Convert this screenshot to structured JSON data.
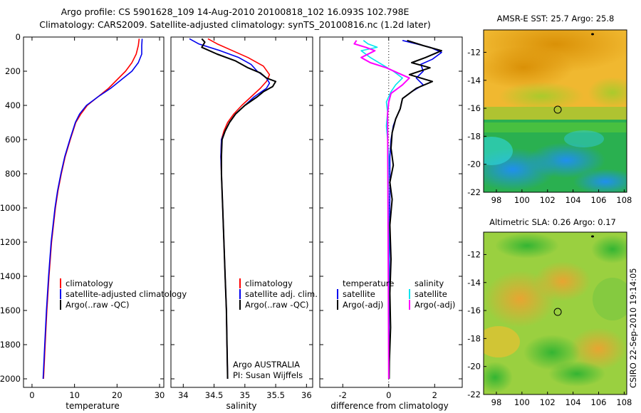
{
  "header": {
    "line1": "Argo profile: CS 5901628_109 14-Aug-2010 20100818_102 16.093S 102.798E",
    "line2": "Climatology: CARS2009. Satellite-adjusted climatology: synTS_20100816.nc (1.2d later)"
  },
  "side_stamp": "CSIRO 22-Sep-2010 19:14:05",
  "colors": {
    "climatology": "#ff0000",
    "satellite": "#0000ee",
    "argo": "#000000",
    "salinity_satellite": "#00e5ee",
    "salinity_argo": "#ff00ff"
  },
  "chart_data": [
    {
      "type": "line",
      "panel": "temperature",
      "xlabel": "temperature",
      "ylabel": "",
      "xlim": [
        -2,
        31
      ],
      "ylim": [
        2050,
        0
      ],
      "xticks": [
        0,
        10,
        20,
        30
      ],
      "yticks": [
        0,
        200,
        400,
        600,
        800,
        1000,
        1200,
        1400,
        1600,
        1800,
        2000
      ],
      "legend": [
        "climatology",
        "satellite-adjusted climatology",
        "Argo(..raw -QC)"
      ],
      "legend_position": "bottom-right",
      "series": [
        {
          "name": "climatology",
          "color": "#ff0000",
          "points": [
            [
              25.2,
              10
            ],
            [
              25.0,
              50
            ],
            [
              24.5,
              100
            ],
            [
              23.5,
              150
            ],
            [
              22.0,
              200
            ],
            [
              20.0,
              250
            ],
            [
              18.0,
              300
            ],
            [
              15.5,
              350
            ],
            [
              13.0,
              400
            ],
            [
              11.5,
              450
            ],
            [
              10.3,
              500
            ],
            [
              9.0,
              600
            ],
            [
              7.8,
              700
            ],
            [
              6.9,
              800
            ],
            [
              6.1,
              900
            ],
            [
              5.5,
              1000
            ],
            [
              4.6,
              1200
            ],
            [
              4.0,
              1400
            ],
            [
              3.5,
              1600
            ],
            [
              3.1,
              1800
            ],
            [
              2.8,
              1950
            ],
            [
              2.7,
              2000
            ]
          ]
        },
        {
          "name": "satellite-adjusted climatology",
          "color": "#0000ee",
          "points": [
            [
              25.9,
              10
            ],
            [
              25.8,
              50
            ],
            [
              25.8,
              100
            ],
            [
              25.0,
              150
            ],
            [
              23.5,
              200
            ],
            [
              21.0,
              250
            ],
            [
              18.5,
              300
            ],
            [
              15.5,
              350
            ],
            [
              12.8,
              400
            ],
            [
              11.2,
              450
            ],
            [
              10.2,
              500
            ],
            [
              8.9,
              600
            ],
            [
              7.7,
              700
            ],
            [
              6.8,
              800
            ],
            [
              6.0,
              900
            ],
            [
              5.4,
              1000
            ],
            [
              4.5,
              1200
            ],
            [
              3.9,
              1400
            ],
            [
              3.4,
              1600
            ],
            [
              3.0,
              1800
            ],
            [
              2.7,
              1950
            ],
            [
              2.6,
              2000
            ]
          ]
        },
        {
          "name": "Argo(..raw -QC)",
          "color": "#000000",
          "points": []
        }
      ]
    },
    {
      "type": "line",
      "panel": "salinity",
      "xlabel": "salinity",
      "ylabel": "",
      "xlim": [
        33.8,
        36.1
      ],
      "ylim": [
        2050,
        0
      ],
      "xticks": [
        34,
        34.5,
        35,
        35.5,
        36
      ],
      "yticks": [
        0,
        200,
        400,
        600,
        800,
        1000,
        1200,
        1400,
        1600,
        1800,
        2000
      ],
      "legend": [
        "climatology",
        "satellite adj. clim.",
        "Argo(..raw -QC)"
      ],
      "legend_position": "bottom-right",
      "annotation": [
        "Argo AUSTRALIA",
        "PI: Susan Wijffels"
      ],
      "series": [
        {
          "name": "climatology",
          "color": "#ff0000",
          "points": [
            [
              34.4,
              10
            ],
            [
              34.55,
              40
            ],
            [
              34.8,
              80
            ],
            [
              35.05,
              120
            ],
            [
              35.3,
              170
            ],
            [
              35.4,
              220
            ],
            [
              35.35,
              260
            ],
            [
              35.25,
              300
            ],
            [
              35.1,
              350
            ],
            [
              34.95,
              400
            ],
            [
              34.82,
              450
            ],
            [
              34.72,
              500
            ],
            [
              34.66,
              550
            ],
            [
              34.62,
              600
            ],
            [
              34.61,
              700
            ],
            [
              34.62,
              800
            ],
            [
              34.64,
              1000
            ],
            [
              34.66,
              1200
            ],
            [
              34.68,
              1400
            ],
            [
              34.7,
              1600
            ],
            [
              34.71,
              1800
            ],
            [
              34.72,
              2000
            ]
          ]
        },
        {
          "name": "satellite adj. clim.",
          "color": "#0000ee",
          "points": [
            [
              34.1,
              10
            ],
            [
              34.25,
              40
            ],
            [
              34.6,
              80
            ],
            [
              34.9,
              120
            ],
            [
              35.1,
              160
            ],
            [
              35.2,
              200
            ],
            [
              35.35,
              240
            ],
            [
              35.4,
              270
            ],
            [
              35.35,
              300
            ],
            [
              35.15,
              350
            ],
            [
              35.0,
              400
            ],
            [
              34.85,
              450
            ],
            [
              34.75,
              500
            ],
            [
              34.68,
              550
            ],
            [
              34.62,
              600
            ],
            [
              34.61,
              700
            ],
            [
              34.62,
              800
            ],
            [
              34.64,
              1000
            ],
            [
              34.66,
              1200
            ],
            [
              34.68,
              1400
            ],
            [
              34.7,
              1600
            ],
            [
              34.71,
              1800
            ],
            [
              34.72,
              2000
            ]
          ]
        },
        {
          "name": "Argo(..raw -QC)",
          "color": "#000000",
          "points": [
            [
              34.3,
              10
            ],
            [
              34.35,
              30
            ],
            [
              34.3,
              60
            ],
            [
              34.55,
              100
            ],
            [
              34.85,
              140
            ],
            [
              35.05,
              180
            ],
            [
              35.25,
              210
            ],
            [
              35.35,
              240
            ],
            [
              35.5,
              260
            ],
            [
              35.45,
              290
            ],
            [
              35.3,
              320
            ],
            [
              35.2,
              350
            ],
            [
              35.0,
              400
            ],
            [
              34.85,
              450
            ],
            [
              34.75,
              500
            ],
            [
              34.68,
              550
            ],
            [
              34.63,
              600
            ],
            [
              34.62,
              700
            ],
            [
              34.62,
              800
            ],
            [
              34.64,
              1000
            ],
            [
              34.66,
              1200
            ],
            [
              34.68,
              1400
            ],
            [
              34.7,
              1600
            ],
            [
              34.71,
              1800
            ],
            [
              34.72,
              2000
            ]
          ]
        }
      ]
    },
    {
      "type": "line",
      "panel": "difference",
      "xlabel": "difference from climatology",
      "ylabel": "",
      "xlim": [
        -3,
        3.2
      ],
      "ylim": [
        2050,
        0
      ],
      "xticks": [
        -2,
        0,
        2
      ],
      "yticks": [
        0,
        200,
        400,
        600,
        800,
        1000,
        1200,
        1400,
        1600,
        1800,
        2000
      ],
      "legend_groups": [
        {
          "title": "temperature",
          "items": [
            "satellite",
            "Argo(-adj)"
          ]
        },
        {
          "title": "salinity",
          "items": [
            "satellite",
            "Argo(-adj)"
          ]
        }
      ],
      "legend_position": "bottom",
      "series": [
        {
          "name": "satellite",
          "group": "temperature",
          "color": "#0000ee",
          "points": [
            [
              0.6,
              20
            ],
            [
              1.2,
              40
            ],
            [
              1.8,
              60
            ],
            [
              2.3,
              90
            ],
            [
              1.9,
              130
            ],
            [
              1.4,
              160
            ],
            [
              1.5,
              200
            ],
            [
              1.2,
              240
            ],
            [
              1.5,
              280
            ],
            [
              1.0,
              320
            ],
            [
              0.6,
              360
            ],
            [
              0.5,
              420
            ],
            [
              0.3,
              480
            ],
            [
              0.2,
              520
            ],
            [
              0.1,
              600
            ],
            [
              0.05,
              700
            ],
            [
              0.05,
              900
            ],
            [
              0.03,
              1200
            ],
            [
              0.02,
              1600
            ],
            [
              0.01,
              2000
            ]
          ]
        },
        {
          "name": "Argo(-adj)",
          "group": "temperature",
          "color": "#000000",
          "points": [
            [
              0.8,
              20
            ],
            [
              1.5,
              50
            ],
            [
              2.3,
              80
            ],
            [
              1.6,
              120
            ],
            [
              1.0,
              150
            ],
            [
              1.8,
              180
            ],
            [
              0.9,
              220
            ],
            [
              1.9,
              260
            ],
            [
              1.2,
              300
            ],
            [
              0.6,
              360
            ],
            [
              0.5,
              420
            ],
            [
              0.3,
              480
            ],
            [
              0.15,
              560
            ],
            [
              0.1,
              650
            ],
            [
              0.2,
              750
            ],
            [
              0.05,
              850
            ],
            [
              0.15,
              950
            ],
            [
              0.05,
              1100
            ],
            [
              0.1,
              1300
            ],
            [
              0.05,
              1500
            ],
            [
              0.08,
              1700
            ],
            [
              0.03,
              1900
            ],
            [
              0.02,
              2000
            ]
          ]
        },
        {
          "name": "satellite",
          "group": "salinity",
          "color": "#00e5ee",
          "points": [
            [
              -1.1,
              20
            ],
            [
              -0.9,
              40
            ],
            [
              -0.5,
              60
            ],
            [
              -1.2,
              80
            ],
            [
              -0.8,
              120
            ],
            [
              -0.3,
              160
            ],
            [
              0.2,
              200
            ],
            [
              0.6,
              240
            ],
            [
              0.3,
              280
            ],
            [
              0.1,
              320
            ],
            [
              -0.1,
              380
            ],
            [
              -0.05,
              440
            ],
            [
              -0.1,
              520
            ],
            [
              -0.05,
              600
            ],
            [
              0,
              700
            ],
            [
              -0.02,
              900
            ],
            [
              0,
              1200
            ],
            [
              0,
              1600
            ],
            [
              0,
              2000
            ]
          ]
        },
        {
          "name": "Argo(-adj)",
          "group": "salinity",
          "color": "#ff00ff",
          "points": [
            [
              -1.4,
              20
            ],
            [
              -1.5,
              40
            ],
            [
              -1.0,
              60
            ],
            [
              -0.6,
              80
            ],
            [
              -1.2,
              120
            ],
            [
              -0.8,
              150
            ],
            [
              -0.1,
              180
            ],
            [
              0.4,
              210
            ],
            [
              0.9,
              240
            ],
            [
              0.6,
              280
            ],
            [
              0.4,
              300
            ],
            [
              0.1,
              330
            ],
            [
              0,
              380
            ],
            [
              -0.05,
              450
            ],
            [
              0,
              2000
            ]
          ]
        }
      ]
    },
    {
      "type": "heatmap",
      "panel": "sst-map",
      "title": "AMSR-E SST: 25.7 Argo: 25.8",
      "xlim": [
        97,
        108.2
      ],
      "ylim": [
        -22,
        -10.4
      ],
      "xticks": [
        98,
        100,
        102,
        104,
        106,
        108
      ],
      "yticks": [
        -12,
        -14,
        -16,
        -18,
        -20,
        -22
      ],
      "marker": [
        102.8,
        -16.1
      ]
    },
    {
      "type": "heatmap",
      "panel": "sla-map",
      "title": "Altimetric SLA: 0.26 Argo: 0.17",
      "xlim": [
        97,
        108.2
      ],
      "ylim": [
        -22,
        -10.4
      ],
      "xticks": [
        98,
        100,
        102,
        104,
        106,
        108
      ],
      "yticks": [
        -12,
        -14,
        -16,
        -18,
        -20,
        -22
      ],
      "marker": [
        102.8,
        -16.1
      ]
    }
  ]
}
